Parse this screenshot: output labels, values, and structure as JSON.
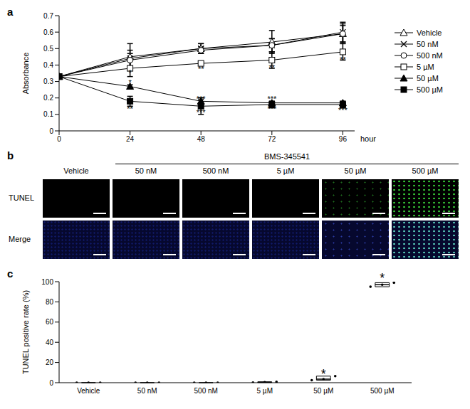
{
  "chart_data": [
    {
      "type": "line",
      "title": "a",
      "x_label": "hour",
      "y_label": "Absorbance",
      "x": [
        0,
        24,
        48,
        72,
        96
      ],
      "xlim": [
        0,
        100
      ],
      "xticks": [
        0,
        24,
        48,
        72,
        96
      ],
      "ylim": [
        0,
        0.7
      ],
      "yticks": [
        0,
        0.1,
        0.2,
        0.3,
        0.4,
        0.5,
        0.6,
        0.7
      ],
      "grid": false,
      "legend": "right",
      "series": [
        {
          "name": "Vehicle",
          "color": "#000000",
          "marker": "triangle-open",
          "line_style": "solid",
          "values": [
            0.33,
            0.45,
            0.5,
            0.54,
            0.59
          ],
          "errors": [
            0,
            0.08,
            0.03,
            0.07,
            0.06
          ]
        },
        {
          "name": "50 nM",
          "color": "#000000",
          "marker": "x",
          "line_style": "solid",
          "values": [
            0.33,
            0.44,
            0.5,
            0.52,
            0.6
          ],
          "errors": [
            0,
            0.05,
            0.03,
            0.04,
            0.06
          ]
        },
        {
          "name": "500 nM",
          "color": "#000000",
          "marker": "circle-open",
          "line_style": "solid",
          "values": [
            0.33,
            0.43,
            0.49,
            0.52,
            0.59
          ],
          "errors": [
            0,
            0.04,
            0.02,
            0.04,
            0.05
          ]
        },
        {
          "name": "5 µM",
          "color": "#000000",
          "marker": "square-open",
          "line_style": "solid",
          "values": [
            0.33,
            0.38,
            0.41,
            0.43,
            0.48
          ],
          "errors": [
            0,
            0.05,
            0.01,
            0.05,
            0.05
          ]
        },
        {
          "name": "50 µM",
          "color": "#000000",
          "marker": "triangle",
          "line_style": "solid",
          "values": [
            0.33,
            0.27,
            0.18,
            0.17,
            0.17
          ],
          "errors": [
            0,
            0.01,
            0.01,
            0.01,
            0.01
          ]
        },
        {
          "name": "500 µM",
          "color": "#000000",
          "marker": "square",
          "line_style": "solid",
          "values": [
            0.33,
            0.18,
            0.15,
            0.16,
            0.16
          ],
          "errors": [
            0,
            0.03,
            0.05,
            0.02,
            0.02
          ]
        }
      ],
      "annotations": [
        {
          "x": 24,
          "y": 0.355,
          "text": "*"
        },
        {
          "x": 24,
          "y": 0.295,
          "text": "*"
        },
        {
          "x": 24,
          "y": 0.135,
          "text": "**"
        },
        {
          "x": 48,
          "y": 0.375,
          "text": "**"
        },
        {
          "x": 48,
          "y": 0.195,
          "text": "***"
        },
        {
          "x": 48,
          "y": 0.11,
          "text": "***"
        },
        {
          "x": 72,
          "y": 0.385,
          "text": "**"
        },
        {
          "x": 72,
          "y": 0.195,
          "text": "***"
        },
        {
          "x": 72,
          "y": 0.135,
          "text": "***"
        },
        {
          "x": 96,
          "y": 0.43,
          "text": "**"
        },
        {
          "x": 96,
          "y": 0.125,
          "text": "***"
        }
      ]
    },
    {
      "type": "box",
      "title": "c",
      "y_label": "TUNEL positive rate (%)",
      "categories": [
        "Vehicle",
        "50 nM",
        "500 nM",
        "5 µM",
        "50 µM",
        "500 µM"
      ],
      "values": [
        [
          0,
          0,
          0
        ],
        [
          0,
          0,
          0
        ],
        [
          0,
          0,
          0
        ],
        [
          0.2,
          0.5,
          0.8
        ],
        [
          2.5,
          3.5,
          6.5
        ],
        [
          95,
          97,
          99
        ]
      ],
      "ylim": [
        0,
        100
      ],
      "yticks": [
        0,
        20,
        40,
        60,
        80,
        100
      ],
      "grid": false,
      "color": "#000000",
      "annotations": [
        {
          "x": "50 µM",
          "y": 9,
          "text": "*"
        },
        {
          "x": "500 µM",
          "y": 104,
          "text": "*"
        }
      ]
    }
  ],
  "images": {
    "title": "b",
    "group_label": "BMS-345541",
    "columns": [
      "Vehicle",
      "50 nM",
      "500 nM",
      "5 µM",
      "50 µM",
      "500 µM"
    ],
    "rows": [
      "TUNEL",
      "Merge"
    ]
  }
}
